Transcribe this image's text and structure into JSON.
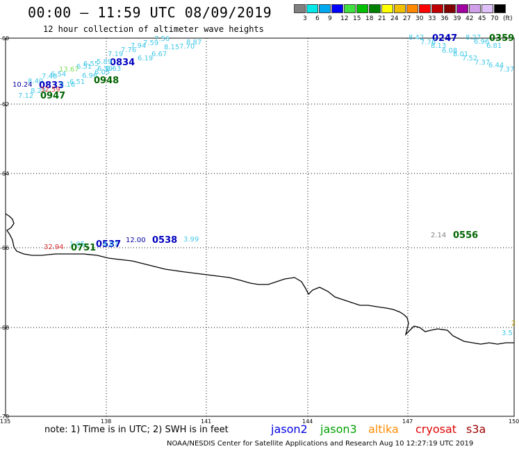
{
  "header": {
    "title": "00:00 – 11:59 UTC 08/09/2019",
    "subtitle": "12 hour collection of altimeter wave heights"
  },
  "colorbar": {
    "colors": [
      "#808080",
      "#00e8e8",
      "#00a8f0",
      "#0000ff",
      "#40e040",
      "#00c000",
      "#008000",
      "#ffff00",
      "#f0c000",
      "#ff8800",
      "#ff0000",
      "#c00000",
      "#800000",
      "#a000a0",
      "#d0a0e8",
      "#e0c0f8",
      "#000000"
    ],
    "labels": [
      "3",
      "6",
      "9",
      "12",
      "15",
      "18",
      "21",
      "24",
      "27",
      "30",
      "33",
      "36",
      "39",
      "42",
      "45",
      "70",
      "(ft)"
    ]
  },
  "axes": {
    "lat_labels": [
      "-60",
      "-62",
      "-64",
      "-66",
      "-68",
      "-70"
    ],
    "lon_labels": [
      "135",
      "138",
      "141",
      "144",
      "147",
      "150"
    ]
  },
  "satellite_labels": [
    {
      "text": "7.56",
      "color": "#40c8e8"
    },
    {
      "text": "8.87",
      "color": "#40c8e8"
    },
    {
      "text": "7.59",
      "color": "#40c8e8"
    },
    {
      "text": "8.15",
      "color": "#40c8e8"
    },
    {
      "text": "7.70",
      "color": "#40c8e8"
    },
    {
      "text": "7.94",
      "color": "#40c8e8"
    },
    {
      "text": "6.67",
      "color": "#40c8e8"
    },
    {
      "text": "7.76",
      "color": "#40c8e8"
    },
    {
      "text": "6.19",
      "color": "#40c8e8"
    },
    {
      "text": "7.19",
      "color": "#40c8e8"
    },
    {
      "text": "0834",
      "color": "#0000c0"
    },
    {
      "text": "6.55",
      "color": "#40c8e8"
    },
    {
      "text": "5.89",
      "color": "#40c8e8"
    },
    {
      "text": "6.51",
      "color": "#40c8e8"
    },
    {
      "text": "6.59",
      "color": "#40c8e8"
    },
    {
      "text": "6.63",
      "color": "#40c8e8"
    },
    {
      "text": "6.05",
      "color": "#40c8e8"
    },
    {
      "text": "6.96",
      "color": "#40c8e8"
    },
    {
      "text": "13.67",
      "color": "#80e060"
    },
    {
      "text": "6.54",
      "color": "#40c8e8"
    },
    {
      "text": "6.51",
      "color": "#40c8e8"
    },
    {
      "text": "0948",
      "color": "#006400"
    },
    {
      "text": "7.48",
      "color": "#40c8e8"
    },
    {
      "text": "8.40",
      "color": "#40c8e8"
    },
    {
      "text": "10.24",
      "color": "#0000a0"
    },
    {
      "text": "0833",
      "color": "#0000c0"
    },
    {
      "text": "5.16",
      "color": "#40c8e8"
    },
    {
      "text": "8.23",
      "color": "#40c8e8"
    },
    {
      "text": "32.59",
      "color": "#e03030"
    },
    {
      "text": "7.12",
      "color": "#40c8e8"
    },
    {
      "text": "0947",
      "color": "#006400"
    },
    {
      "text": "8.42",
      "color": "#40c8e8"
    },
    {
      "text": "0247",
      "color": "#0000c0"
    },
    {
      "text": "8.27",
      "color": "#40c8e8"
    },
    {
      "text": "0359",
      "color": "#006400"
    },
    {
      "text": "7.76",
      "color": "#40c8e8"
    },
    {
      "text": "8.13",
      "color": "#40c8e8"
    },
    {
      "text": "6.96",
      "color": "#40c8e8"
    },
    {
      "text": "6.81",
      "color": "#40c8e8"
    },
    {
      "text": "6.08",
      "color": "#40c8e8"
    },
    {
      "text": "8.01",
      "color": "#40c8e8"
    },
    {
      "text": "7.52",
      "color": "#40c8e8"
    },
    {
      "text": "7.37",
      "color": "#40c8e8"
    },
    {
      "text": "6.44",
      "color": "#40c8e8"
    },
    {
      "text": "7.37",
      "color": "#40c8e8"
    },
    {
      "text": "32.94",
      "color": "#e03030"
    },
    {
      "text": "1.05",
      "color": "#40c8e8"
    },
    {
      "text": "0751",
      "color": "#006400"
    },
    {
      "text": "0537",
      "color": "#0000c0"
    },
    {
      "text": "4.07",
      "color": "#40c8e8"
    },
    {
      "text": "12.00",
      "color": "#0000a0"
    },
    {
      "text": "0538",
      "color": "#0000c0"
    },
    {
      "text": "3.99",
      "color": "#40c8e8"
    },
    {
      "text": "2.14",
      "color": "#808080"
    },
    {
      "text": "0556",
      "color": "#006400"
    },
    {
      "text": "2",
      "color": "#c0a000"
    },
    {
      "text": "3.5",
      "color": "#40c8e8"
    }
  ],
  "footer": {
    "note": "note:  1) Time is in UTC;  2) SWH is in feet",
    "satellites": [
      {
        "name": "jason2",
        "color": "#0000e0"
      },
      {
        "name": "jason3",
        "color": "#00a000"
      },
      {
        "name": "altika",
        "color": "#ff8c00"
      },
      {
        "name": "cryosat",
        "color": "#e00000"
      },
      {
        "name": "s3a",
        "color": "#a00000"
      }
    ],
    "credit": "NOAA/NESDIS Center for Satellite Applications and Research     Aug 10 12:27:19 UTC 2019"
  }
}
